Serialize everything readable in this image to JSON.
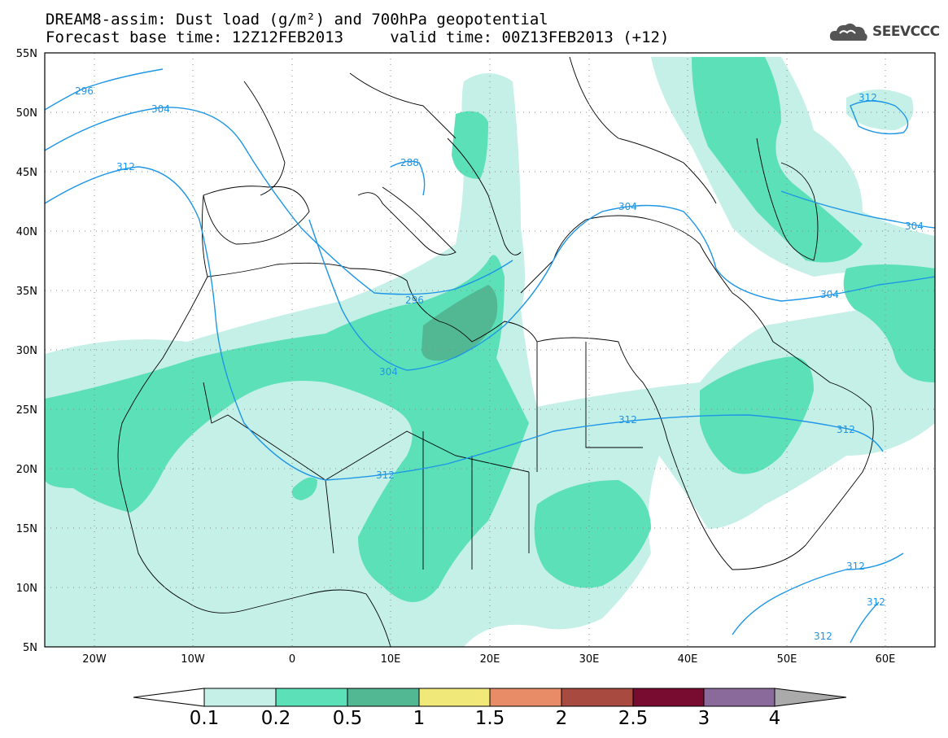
{
  "header": {
    "title_line1": "DREAM8-assim: Dust load (g/m²) and 700hPa geopotential",
    "title_line2": "Forecast base time: 12Z12FEB2013     valid time: 00Z13FEB2013 (+12)"
  },
  "logo": {
    "text": "SEEVCCC",
    "icon": "cloud-icon"
  },
  "map": {
    "lat_labels": [
      "55N",
      "50N",
      "45N",
      "40N",
      "35N",
      "30N",
      "25N",
      "20N",
      "15N",
      "10N",
      "5N"
    ],
    "lon_labels": [
      "20W",
      "10W",
      "0",
      "10E",
      "20E",
      "30E",
      "40E",
      "50E",
      "60E"
    ],
    "contour_labels": [
      "296",
      "304",
      "312",
      "288",
      "296",
      "304",
      "312",
      "304",
      "304",
      "312",
      "312",
      "312",
      "312",
      "312",
      "312"
    ]
  },
  "colorbar": {
    "ticks": [
      "0.1",
      "0.2",
      "0.5",
      "1",
      "1.5",
      "2",
      "2.5",
      "3",
      "4"
    ],
    "colors": [
      "#c4f0e8",
      "#5ce0b8",
      "#52b894",
      "#f0e878",
      "#e88c68",
      "#a84a40",
      "#780c30",
      "#8a6a9a"
    ],
    "under_color": "#ffffff",
    "over_color": "#aaaaaa"
  }
}
